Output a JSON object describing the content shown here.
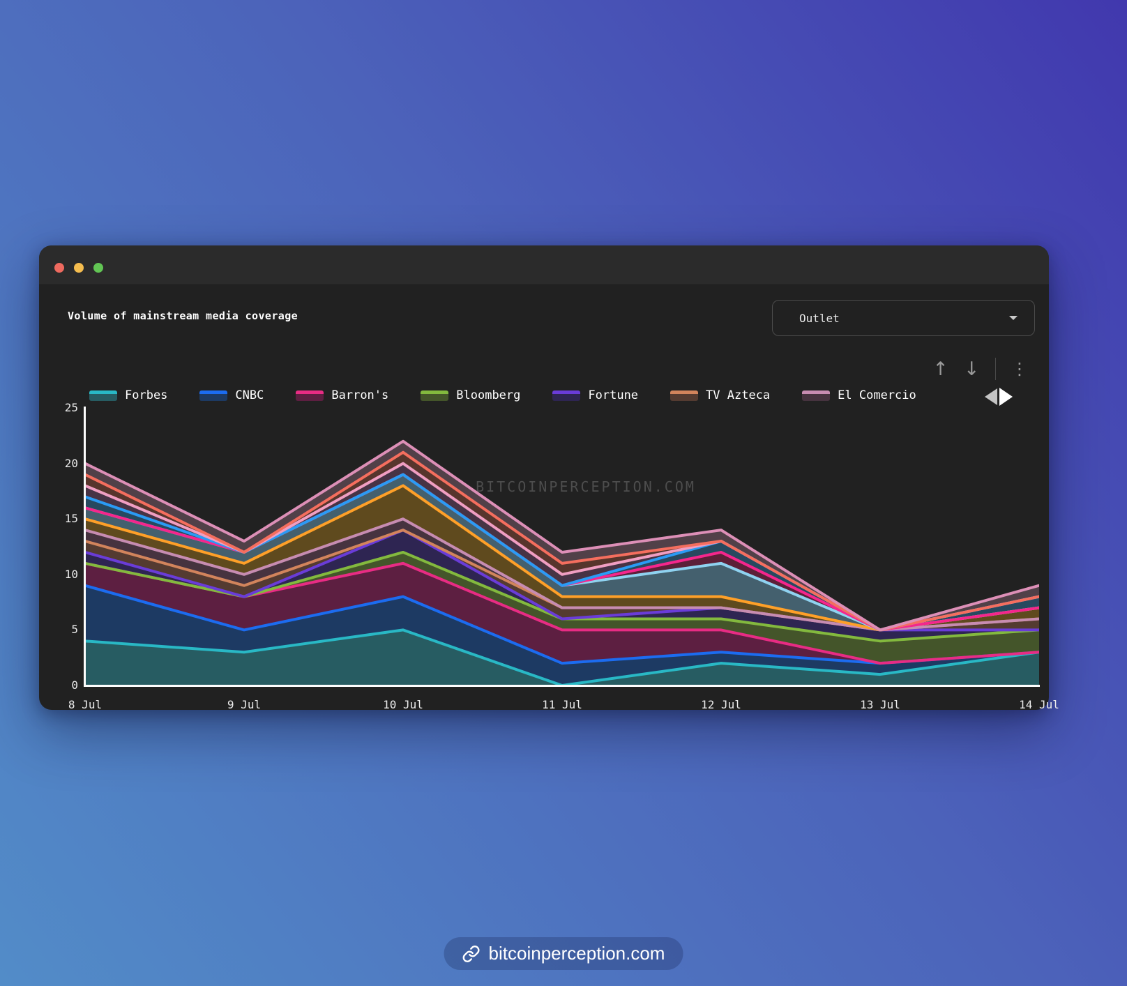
{
  "header": {
    "title": "Volume of mainstream media coverage"
  },
  "controls": {
    "dropdown_label": "Outlet",
    "up_arrow": "↑",
    "down_arrow": "↓",
    "kebab": "⋮"
  },
  "colors": {
    "window_bg": "#212121",
    "titlebar_bg": "#2b2b2b",
    "traffic_red": "#ee6a5f",
    "traffic_yellow": "#f5bd4f",
    "traffic_green": "#62c554",
    "axis": "#fdfdfd",
    "tick_text": "#ececec",
    "watermark_text": "#4d4d4d",
    "background_gradient_start": "#528cc8",
    "background_gradient_end": "#4138ae"
  },
  "watermark": "BITCOINPERCEPTION.COM",
  "footer_badge": {
    "text": "bitcoinperception.com"
  },
  "chart_data": {
    "type": "area",
    "stacked": true,
    "title": "Volume of mainstream media coverage",
    "categories": [
      "8 Jul",
      "9 Jul",
      "10 Jul",
      "11 Jul",
      "12 Jul",
      "13 Jul",
      "14 Jul"
    ],
    "xlabel": "",
    "ylabel": "",
    "ylim": [
      0,
      25
    ],
    "yticks": [
      0,
      5,
      10,
      15,
      20,
      25
    ],
    "grid": false,
    "legend_position": "top",
    "legend_visible_count": 7,
    "series": [
      {
        "name": "Forbes",
        "line_color": "#29b8c5",
        "fill_color": "#275c62",
        "values": [
          4,
          3,
          5,
          0,
          2,
          1,
          3
        ]
      },
      {
        "name": "CNBC",
        "line_color": "#1c6cf0",
        "fill_color": "#1d3a63",
        "values": [
          5,
          2,
          3,
          2,
          1,
          1,
          0
        ]
      },
      {
        "name": "Barron's",
        "line_color": "#e82c84",
        "fill_color": "#5d1f41",
        "values": [
          2,
          3,
          3,
          3,
          2,
          0,
          0
        ]
      },
      {
        "name": "Bloomberg",
        "line_color": "#83b93e",
        "fill_color": "#44552a",
        "values": [
          0,
          0,
          1,
          1,
          1,
          2,
          2
        ]
      },
      {
        "name": "Fortune",
        "line_color": "#6a3cd8",
        "fill_color": "#2e2552",
        "values": [
          1,
          0,
          2,
          0,
          1,
          1,
          0
        ]
      },
      {
        "name": "TV Azteca",
        "line_color": "#d2845c",
        "fill_color": "#543b31",
        "values": [
          1,
          1,
          0,
          1,
          0,
          0,
          1
        ]
      },
      {
        "name": "El Comercio",
        "line_color": "#c78cb1",
        "fill_color": "#46333f",
        "values": [
          1,
          1,
          1,
          0,
          0,
          0,
          0
        ]
      },
      {
        "name": "",
        "line_color": "#ffa028",
        "fill_color": "#5f4a1e",
        "values": [
          1,
          1,
          3,
          1,
          1,
          0,
          1
        ]
      },
      {
        "name": "",
        "line_color": "#8fd2f0",
        "fill_color": "#44606e",
        "values": [
          1,
          1,
          1,
          1,
          3,
          0,
          0
        ]
      },
      {
        "name": "",
        "line_color": "#f5268c",
        "fill_color": "#5c2038",
        "values": [
          0,
          0,
          0,
          0,
          1,
          0,
          0
        ]
      },
      {
        "name": "",
        "line_color": "#2a9bf5",
        "fill_color": "#27495f",
        "values": [
          1,
          0,
          0,
          0,
          1,
          0,
          1
        ]
      },
      {
        "name": "",
        "line_color": "#f09ec2",
        "fill_color": "#473345",
        "values": [
          1,
          0,
          1,
          1,
          0,
          0,
          0
        ]
      },
      {
        "name": "",
        "line_color": "#f56e5e",
        "fill_color": "#57352c",
        "values": [
          1,
          0,
          1,
          1,
          0,
          0,
          0
        ]
      },
      {
        "name": "",
        "line_color": "#dd8fb7",
        "fill_color": "#514048",
        "values": [
          1,
          1,
          1,
          1,
          1,
          0,
          1
        ]
      }
    ]
  }
}
